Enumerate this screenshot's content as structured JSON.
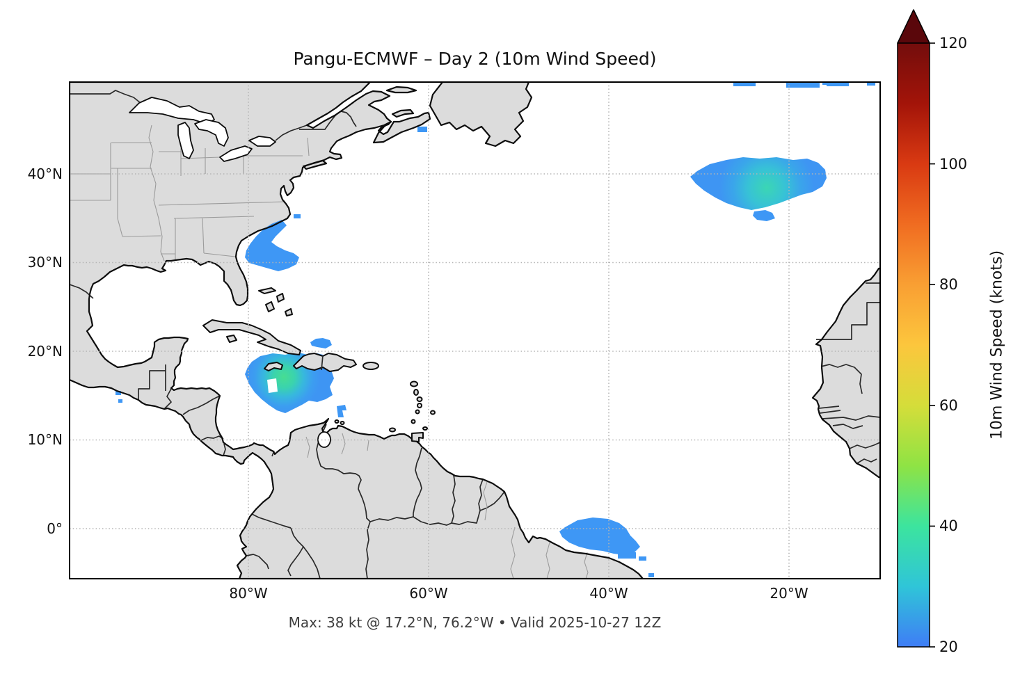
{
  "title": "Pangu-ECMWF – Day 2 (10m Wind Speed)",
  "caption": "Max: 38 kt @ 17.2°N, 76.2°W • Valid 2025-10-27 12Z",
  "chart_data": {
    "type": "heatmap",
    "title": "Pangu-ECMWF – Day 2 (10m Wind Speed)",
    "annotation": "Max: 38 kt @ 17.2°N, 76.2°W • Valid 2025-10-27 12Z",
    "model": "Pangu-ECMWF",
    "lead": "Day 2",
    "variable": "10m Wind Speed",
    "valid_time": "2025-10-27 12Z",
    "max_value": {
      "knots": 38,
      "lat": 17.2,
      "lon": -76.2
    },
    "projection": "PlateCarree, Atlantic basin",
    "extent": {
      "lon_min": -99.8,
      "lon_max": -9.9,
      "lat_min": -5.7,
      "lat_max": 50.4
    },
    "grid": true,
    "x_ticks": [
      {
        "lon": -80,
        "label": "80°W"
      },
      {
        "lon": -60,
        "label": "60°W"
      },
      {
        "lon": -40,
        "label": "40°W"
      },
      {
        "lon": -20,
        "label": "20°W"
      }
    ],
    "y_ticks": [
      {
        "lat": 40,
        "label": "40°N"
      },
      {
        "lat": 30,
        "label": "30°N"
      },
      {
        "lat": 20,
        "label": "20°N"
      },
      {
        "lat": 10,
        "label": "10°N"
      },
      {
        "lat": 0,
        "label": "0°"
      }
    ],
    "colorbar": {
      "label": "10m Wind Speed (knots)",
      "min": 20,
      "max": 120,
      "extend": "max",
      "ticks": [
        120,
        100,
        80,
        60,
        40,
        20
      ],
      "stops": [
        {
          "value": 120,
          "color": "#730d0c"
        },
        {
          "value": 110,
          "color": "#a31409"
        },
        {
          "value": 100,
          "color": "#d93a12"
        },
        {
          "value": 90,
          "color": "#f06c21"
        },
        {
          "value": 80,
          "color": "#f99f33"
        },
        {
          "value": 70,
          "color": "#fcc63d"
        },
        {
          "value": 60,
          "color": "#d5dd3a"
        },
        {
          "value": 50,
          "color": "#8fe344"
        },
        {
          "value": 40,
          "color": "#3ce49e"
        },
        {
          "value": 30,
          "color": "#2fc5d8"
        },
        {
          "value": 20,
          "color": "#3f7df6"
        }
      ],
      "arrow_color": "#5a070b"
    },
    "wind_regions": [
      {
        "name": "caribbean-jamaica",
        "center": {
          "lat": 17.2,
          "lon": -76.2
        },
        "max_kt": 38
      },
      {
        "name": "north-atlantic",
        "center": {
          "lat": 38.5,
          "lon": -25.0
        },
        "max_kt": 34
      },
      {
        "name": "southeast-us-coast",
        "center": {
          "lat": 32.0,
          "lon": -78.5
        },
        "max_kt": 24
      },
      {
        "name": "equatorial-brazil-coast",
        "center": {
          "lat": -0.5,
          "lon": -40.5
        },
        "max_kt": 26
      },
      {
        "name": "north-of-hispaniola",
        "center": {
          "lat": 20.1,
          "lon": -72.7
        },
        "max_kt": 22
      },
      {
        "name": "nova-scotia-fragment",
        "center": {
          "lat": 45.2,
          "lon": -60.9
        },
        "max_kt": 21
      },
      {
        "name": "top-edge-fragments",
        "center": {
          "lat": 50.2,
          "lon": -24.0
        },
        "max_kt": 21
      }
    ]
  },
  "theme": {
    "land": "#dcdcdc",
    "ocean": "#ffffff",
    "coastline": "#0d0d0d",
    "country_border": "#2a2a2a",
    "state_border": "#9b9b9b",
    "gridline": "#b4b4b4",
    "patch_blue": "#3e97f5",
    "patch_teal": "#3bd1b7",
    "patch_green": "#47dd92"
  }
}
